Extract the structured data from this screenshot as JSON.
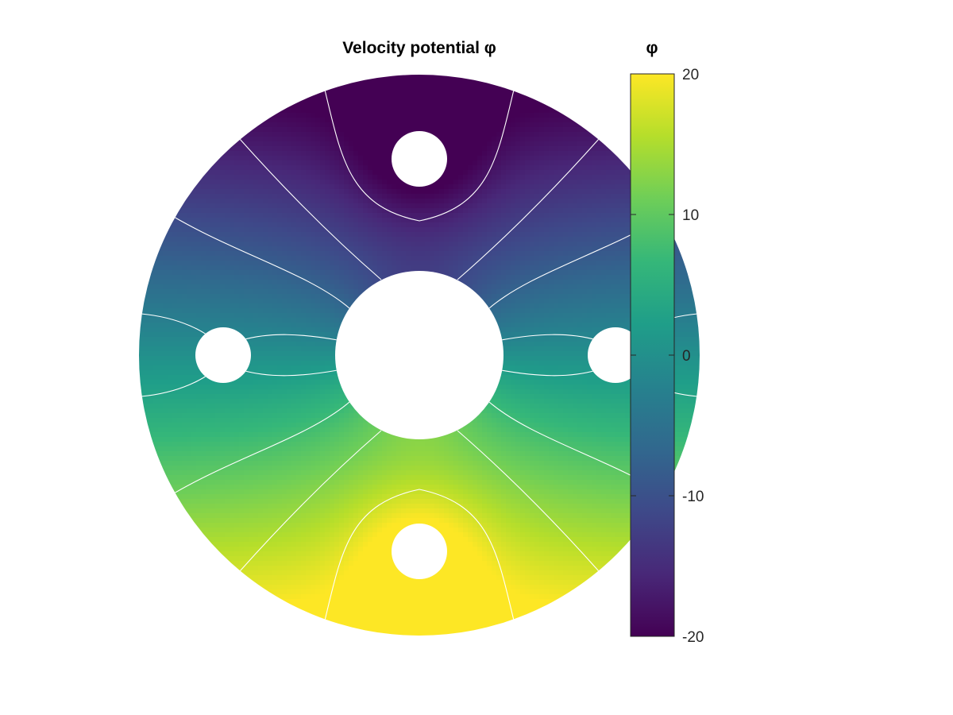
{
  "chart_data": {
    "type": "heatmap",
    "title": "Velocity potential φ",
    "colorbar": {
      "label": "φ",
      "limits": [
        -20,
        20
      ],
      "ticks": [
        20,
        10,
        0,
        -10,
        -20
      ],
      "tick_labels": [
        "20",
        "10",
        "0",
        "-10",
        "-20"
      ],
      "colormap": "viridis",
      "colors": [
        "#440154",
        "#482878",
        "#3e4989",
        "#31688e",
        "#26828e",
        "#1f9e89",
        "#35b779",
        "#6ece58",
        "#b5de2b",
        "#fde725"
      ]
    },
    "domain": {
      "shape": "annulus with circular holes",
      "holes": [
        {
          "position": "center",
          "relative_radius": 0.3
        },
        {
          "position": "top",
          "relative_radius": 0.1
        },
        {
          "position": "bottom",
          "relative_radius": 0.1
        },
        {
          "position": "left",
          "relative_radius": 0.1
        },
        {
          "position": "right",
          "relative_radius": 0.1
        }
      ]
    },
    "field_extremes": {
      "min_near": "top hole",
      "min": -20,
      "max_near": "bottom hole",
      "max": 20
    },
    "contour_line_color": "#ffffff",
    "grid": false
  }
}
